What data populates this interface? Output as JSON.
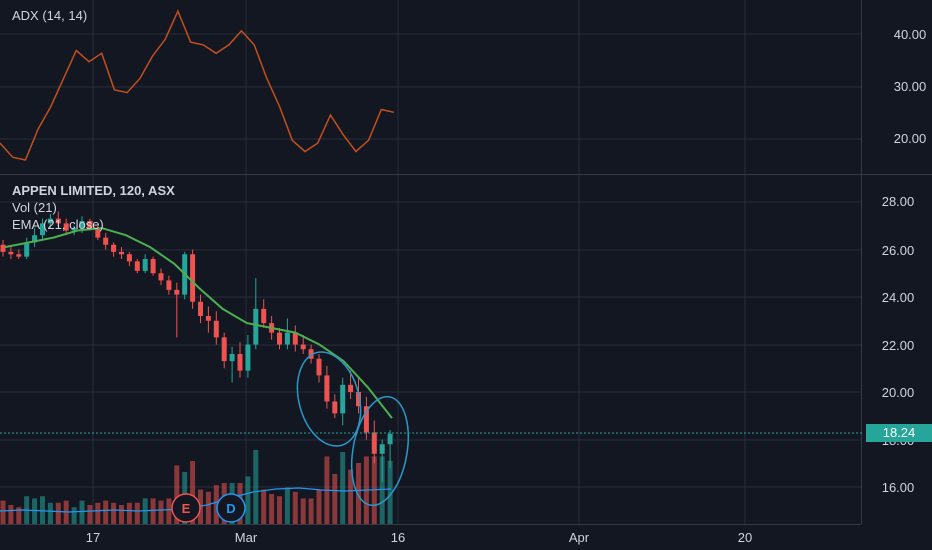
{
  "colors": {
    "background": "#131722",
    "grid": "#2a2e39",
    "up": "#26a69a",
    "down": "#ef5350",
    "adx": "#c2501d",
    "ema": "#4caf50",
    "volume_ma": "#2196f3",
    "annotation": "#2a98c8"
  },
  "adx_panel": {
    "legend": "ADX (14, 14)",
    "ticks": [
      "40.00",
      "30.00",
      "20.00"
    ]
  },
  "price_panel": {
    "legend_title": "APPEN LIMITED, 120, ASX",
    "legend_vol": "Vol (21)",
    "legend_ema": "EMA (21, close)",
    "ticks": [
      "28.00",
      "26.00",
      "24.00",
      "22.00",
      "20.00",
      "18.00",
      "16.00"
    ],
    "last_price": "18.24"
  },
  "x_axis": {
    "ticks": [
      "17",
      "Mar",
      "16",
      "Apr",
      "20"
    ]
  },
  "markers": [
    {
      "label": "E"
    },
    {
      "label": "D"
    }
  ],
  "chart_data": [
    {
      "type": "line",
      "series": [
        {
          "name": "ADX (14, 14)",
          "values": [
            19.5,
            17,
            16.5,
            22,
            26,
            31,
            36,
            34,
            35.5,
            29,
            28.5,
            31,
            35,
            38,
            43,
            37.5,
            37,
            35.5,
            37,
            39.5,
            37,
            31,
            26,
            20,
            18,
            19.5,
            24.5,
            21,
            18,
            20,
            25.5,
            25
          ]
        }
      ],
      "ylim": [
        14,
        45
      ]
    },
    {
      "type": "candlestick",
      "ylim": [
        14.7,
        28.8
      ],
      "candles": [
        [
          26.2,
          26.4,
          25.7,
          25.9
        ],
        [
          25.9,
          26.1,
          25.6,
          25.8
        ],
        [
          25.8,
          26.0,
          25.6,
          25.7
        ],
        [
          25.7,
          26.5,
          25.6,
          26.3
        ],
        [
          26.3,
          26.9,
          26.1,
          26.6
        ],
        [
          26.6,
          27.3,
          26.4,
          27.1
        ],
        [
          27.1,
          27.5,
          26.9,
          27.3
        ],
        [
          27.3,
          27.6,
          27.0,
          27.1
        ],
        [
          27.1,
          27.3,
          26.6,
          26.8
        ],
        [
          26.8,
          27.0,
          26.6,
          26.9
        ],
        [
          26.9,
          27.4,
          26.7,
          27.2
        ],
        [
          27.2,
          27.3,
          26.8,
          26.9
        ],
        [
          26.9,
          27.0,
          26.4,
          26.5
        ],
        [
          26.5,
          26.7,
          26.0,
          26.2
        ],
        [
          26.2,
          26.3,
          25.7,
          25.9
        ],
        [
          25.9,
          26.1,
          25.6,
          25.8
        ],
        [
          25.8,
          25.9,
          25.3,
          25.5
        ],
        [
          25.5,
          25.6,
          25.0,
          25.1
        ],
        [
          25.1,
          25.8,
          25.0,
          25.6
        ],
        [
          25.6,
          25.7,
          24.9,
          25.0
        ],
        [
          25.0,
          25.2,
          24.5,
          24.7
        ],
        [
          24.7,
          24.9,
          24.1,
          24.3
        ],
        [
          24.3,
          24.6,
          22.3,
          24.1
        ],
        [
          24.1,
          25.9,
          23.9,
          25.8
        ],
        [
          25.8,
          26.0,
          23.5,
          23.8
        ],
        [
          23.8,
          24.1,
          22.9,
          23.2
        ],
        [
          23.2,
          23.6,
          22.5,
          23.0
        ],
        [
          23.0,
          23.4,
          22.0,
          22.3
        ],
        [
          22.3,
          22.5,
          21.0,
          21.3
        ],
        [
          21.3,
          21.9,
          20.4,
          21.6
        ],
        [
          21.6,
          22.1,
          20.6,
          20.9
        ],
        [
          20.9,
          22.4,
          20.6,
          22.0
        ],
        [
          22.0,
          24.8,
          21.8,
          23.5
        ],
        [
          23.5,
          23.9,
          22.7,
          22.9
        ],
        [
          22.9,
          23.2,
          22.2,
          22.5
        ],
        [
          22.5,
          22.7,
          21.8,
          22.0
        ],
        [
          22.0,
          23.1,
          21.8,
          22.5
        ],
        [
          22.5,
          22.8,
          21.7,
          22.0
        ],
        [
          22.0,
          22.4,
          21.6,
          21.8
        ],
        [
          21.8,
          22.0,
          21.2,
          21.4
        ],
        [
          21.4,
          21.6,
          20.4,
          20.7
        ],
        [
          20.7,
          21.1,
          19.3,
          19.6
        ],
        [
          19.6,
          19.9,
          18.9,
          19.1
        ],
        [
          19.1,
          20.6,
          18.6,
          20.3
        ],
        [
          20.3,
          20.9,
          19.7,
          20.0
        ],
        [
          20.0,
          20.6,
          19.1,
          19.4
        ],
        [
          19.4,
          19.8,
          18.0,
          18.3
        ],
        [
          18.3,
          18.8,
          17.0,
          17.4
        ],
        [
          17.4,
          18.0,
          16.2,
          17.8
        ],
        [
          17.8,
          18.4,
          16.8,
          18.24
        ]
      ],
      "ema": [
        26.1,
        26.3,
        26.5,
        26.8,
        26.9,
        26.6,
        26.1,
        25.4,
        24.4,
        23.5,
        22.9,
        22.7,
        22.5,
        22.0,
        21.3,
        20.2,
        18.9
      ]
    }
  ]
}
